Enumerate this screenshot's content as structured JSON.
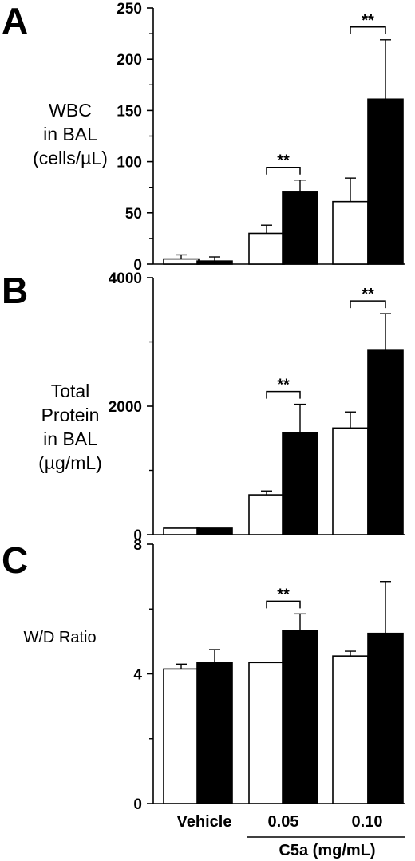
{
  "chart_data": [
    {
      "type": "bar",
      "panel": "A",
      "ylabel_lines": [
        "WBC",
        "in BAL",
        "(cells/µL)"
      ],
      "categories": [
        "Vehicle",
        "0.05",
        "0.10"
      ],
      "series": [
        {
          "values": [
            5,
            30,
            61
          ],
          "errors": [
            4,
            8,
            23
          ],
          "color": "#ffffff"
        },
        {
          "values": [
            3,
            71,
            161
          ],
          "errors": [
            4,
            11,
            58
          ],
          "color": "#000000"
        }
      ],
      "ylim": [
        0,
        250
      ],
      "yticks": [
        0,
        50,
        100,
        150,
        200,
        250
      ],
      "significance": [
        {
          "category": "0.05",
          "label": "**"
        },
        {
          "category": "0.10",
          "label": "**"
        }
      ]
    },
    {
      "type": "bar",
      "panel": "B",
      "ylabel_lines": [
        "Total",
        "Protein",
        "in BAL",
        "(µg/mL)"
      ],
      "categories": [
        "Vehicle",
        "0.05",
        "0.10"
      ],
      "series": [
        {
          "values": [
            100,
            620,
            1660
          ],
          "errors": [
            0,
            60,
            250
          ],
          "color": "#ffffff"
        },
        {
          "values": [
            100,
            1590,
            2880
          ],
          "errors": [
            0,
            440,
            560
          ],
          "color": "#000000"
        }
      ],
      "ylim": [
        0,
        4000
      ],
      "yticks": [
        0,
        2000,
        4000
      ],
      "significance": [
        {
          "category": "0.05",
          "label": "**"
        },
        {
          "category": "0.10",
          "label": "**"
        }
      ]
    },
    {
      "type": "bar",
      "panel": "C",
      "ylabel_lines": [
        "W/D Ratio"
      ],
      "categories": [
        "Vehicle",
        "0.05",
        "0.10"
      ],
      "series": [
        {
          "values": [
            4.15,
            4.35,
            4.55
          ],
          "errors": [
            0.15,
            0,
            0.15
          ],
          "color": "#ffffff"
        },
        {
          "values": [
            4.35,
            5.33,
            5.25
          ],
          "errors": [
            0.4,
            0.52,
            1.6
          ],
          "color": "#000000"
        }
      ],
      "ylim": [
        0,
        8
      ],
      "yticks": [
        0,
        4,
        8
      ],
      "significance": [
        {
          "category": "0.05",
          "label": "**"
        }
      ]
    }
  ],
  "x_group_label": "C5a (mg/mL)"
}
